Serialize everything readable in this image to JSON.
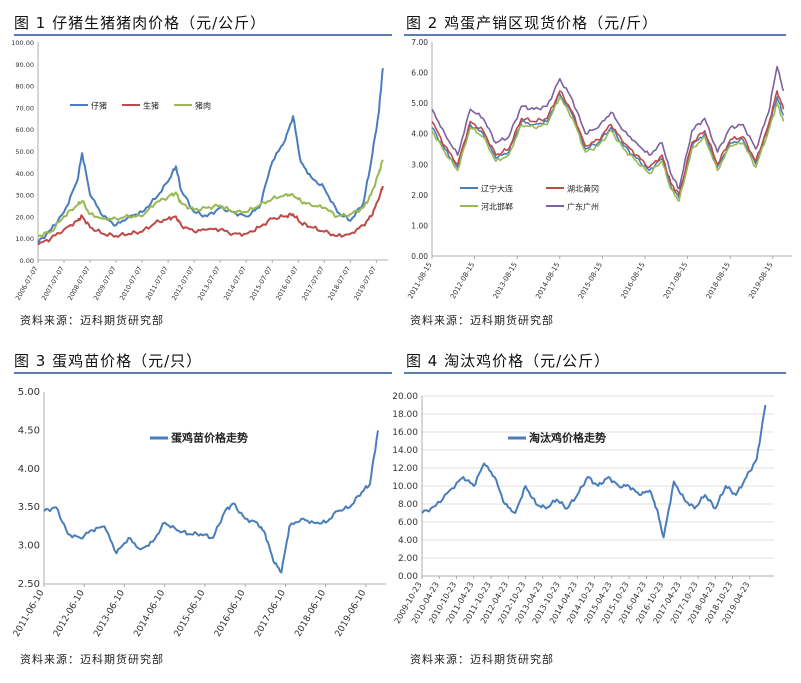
{
  "source_label": "资料来源：迈科期货研究部",
  "charts": [
    {
      "title": "图 1  仔猪生猪猪肉价格（元/公斤）",
      "chart_data": {
        "type": "line",
        "ylim": [
          0,
          100
        ],
        "yticks": [
          "0.00",
          "10.00",
          "20.00",
          "30.00",
          "40.00",
          "50.00",
          "60.00",
          "70.00",
          "80.00",
          "90.00",
          "100.00"
        ],
        "xticks": [
          "2006-07-07",
          "2007-07-07",
          "2008-07-07",
          "2009-07-07",
          "2010-07-07",
          "2011-07-07",
          "2012-07-07",
          "2013-07-07",
          "2014-07-07",
          "2015-07-07",
          "2016-07-07",
          "2017-07-07",
          "2018-07-07",
          "2019-07-07"
        ],
        "x": [
          2006.5,
          2007.0,
          2007.5,
          2008.0,
          2008.2,
          2008.5,
          2009.0,
          2009.5,
          2010.0,
          2010.5,
          2011.0,
          2011.5,
          2011.8,
          2012.0,
          2012.5,
          2013.0,
          2013.5,
          2014.0,
          2014.5,
          2015.0,
          2015.5,
          2016.0,
          2016.3,
          2016.6,
          2017.0,
          2017.5,
          2018.0,
          2018.5,
          2019.0,
          2019.3,
          2019.6,
          2019.75
        ],
        "series": [
          {
            "name": "仔猪",
            "color": "#4a7ebb",
            "values": [
              8,
              14,
              22,
              36,
              49,
              30,
              20,
              16,
              20,
              22,
              28,
              36,
              43,
              32,
              22,
              20,
              24,
              22,
              20,
              24,
              45,
              55,
              66,
              45,
              38,
              33,
              22,
              18,
              26,
              45,
              68,
              88
            ]
          },
          {
            "name": "生猪",
            "color": "#be4b48",
            "values": [
              7,
              10,
              14,
              18,
              20,
              15,
              12,
              11,
              12,
              13,
              17,
              19,
              20,
              16,
              13,
              14,
              14,
              12,
              12,
              15,
              19,
              20,
              21,
              17,
              15,
              13,
              11,
              12,
              16,
              20,
              28,
              34
            ]
          },
          {
            "name": "猪肉",
            "color": "#98b954",
            "values": [
              11,
              13,
              20,
              25,
              27,
              21,
              19,
              19,
              20,
              20,
              26,
              29,
              31,
              26,
              23,
              24,
              25,
              22,
              22,
              25,
              28,
              30,
              30,
              27,
              25,
              24,
              20,
              21,
              24,
              30,
              40,
              46
            ]
          }
        ]
      }
    },
    {
      "title": "图 2    鸡蛋产销区现货价格（元/斤）",
      "chart_data": {
        "type": "line",
        "ylim": [
          0,
          7
        ],
        "yticks": [
          "0.00",
          "1.00",
          "2.00",
          "3.00",
          "4.00",
          "5.00",
          "6.00",
          "7.00"
        ],
        "xticks": [
          "2011-08-15",
          "2012-08-15",
          "2013-08-15",
          "2014-08-15",
          "2015-08-15",
          "2016-08-15",
          "2017-08-15",
          "2018-08-15",
          "2019-08-15"
        ],
        "x": [
          2011.6,
          2011.9,
          2012.2,
          2012.5,
          2012.8,
          2013.1,
          2013.4,
          2013.7,
          2014.0,
          2014.3,
          2014.6,
          2014.9,
          2015.2,
          2015.5,
          2015.8,
          2016.1,
          2016.4,
          2016.7,
          2017.0,
          2017.2,
          2017.4,
          2017.7,
          2018.0,
          2018.3,
          2018.6,
          2018.9,
          2019.2,
          2019.5,
          2019.7,
          2019.85
        ],
        "series": [
          {
            "name": "辽宁大连",
            "color": "#4a7ebb",
            "values": [
              4.2,
              3.5,
              2.9,
              4.3,
              4.0,
              3.2,
              3.4,
              4.4,
              4.3,
              4.4,
              5.3,
              4.6,
              3.5,
              3.7,
              4.2,
              3.6,
              3.2,
              2.8,
              3.2,
              2.3,
              1.9,
              3.6,
              4.0,
              2.9,
              3.7,
              3.8,
              3.0,
              4.2,
              5.2,
              4.6
            ]
          },
          {
            "name": "湖北黄冈",
            "color": "#be4b48",
            "values": [
              4.4,
              3.6,
              3.0,
              4.4,
              4.1,
              3.3,
              3.5,
              4.5,
              4.4,
              4.5,
              5.4,
              4.7,
              3.6,
              3.8,
              4.3,
              3.7,
              3.3,
              2.9,
              3.3,
              2.4,
              2.0,
              3.7,
              4.1,
              3.0,
              3.8,
              3.9,
              3.1,
              4.3,
              5.4,
              4.8
            ]
          },
          {
            "name": "河北邯郸",
            "color": "#98b954",
            "values": [
              4.1,
              3.4,
              2.8,
              4.2,
              3.9,
              3.1,
              3.3,
              4.3,
              4.2,
              4.3,
              5.2,
              4.5,
              3.4,
              3.6,
              4.1,
              3.5,
              3.1,
              2.7,
              3.1,
              2.2,
              1.8,
              3.5,
              3.9,
              2.8,
              3.6,
              3.7,
              2.9,
              4.1,
              5.0,
              4.4
            ]
          },
          {
            "name": "广东广州",
            "color": "#7d60a0",
            "values": [
              4.8,
              4.0,
              3.3,
              4.8,
              4.5,
              3.7,
              3.9,
              4.9,
              4.8,
              4.9,
              5.8,
              5.1,
              4.0,
              4.2,
              4.7,
              4.1,
              3.7,
              3.3,
              3.7,
              2.7,
              2.2,
              4.1,
              4.5,
              3.4,
              4.2,
              4.3,
              3.5,
              4.7,
              6.2,
              5.4
            ]
          }
        ]
      }
    },
    {
      "title": "图 3    蛋鸡苗价格（元/只）",
      "chart_data": {
        "type": "line",
        "ylim": [
          2.5,
          5.0
        ],
        "yticks": [
          "2.50",
          "3.00",
          "3.50",
          "4.00",
          "4.50",
          "5.00"
        ],
        "xticks": [
          "2011-06-10",
          "2012-06-10",
          "2013-06-10",
          "2014-06-10",
          "2015-06-10",
          "2016-06-10",
          "2017-06-10",
          "2018-06-10",
          "2019-06-10"
        ],
        "x": [
          2011.4,
          2011.7,
          2012.0,
          2012.3,
          2012.6,
          2012.9,
          2013.2,
          2013.5,
          2013.8,
          2014.1,
          2014.4,
          2014.7,
          2015.0,
          2015.3,
          2015.6,
          2015.9,
          2016.1,
          2016.4,
          2016.7,
          2016.9,
          2017.1,
          2017.3,
          2017.5,
          2017.8,
          2018.1,
          2018.4,
          2018.7,
          2019.0,
          2019.3,
          2019.5,
          2019.7
        ],
        "series": [
          {
            "name": "蛋鸡苗价格走势",
            "color": "#4a7ebb",
            "values": [
              3.45,
              3.5,
              3.15,
              3.1,
              3.2,
              3.25,
              2.9,
              3.1,
              2.95,
              3.05,
              3.3,
              3.2,
              3.15,
              3.15,
              3.1,
              3.45,
              3.55,
              3.35,
              3.3,
              3.15,
              2.8,
              2.65,
              3.25,
              3.35,
              3.3,
              3.3,
              3.45,
              3.5,
              3.7,
              3.8,
              4.5
            ]
          }
        ]
      }
    },
    {
      "title": "图 4    淘汰鸡价格（元/公斤）",
      "chart_data": {
        "type": "line",
        "ylim": [
          0,
          20
        ],
        "yticks": [
          "0.00",
          "2.00",
          "4.00",
          "6.00",
          "8.00",
          "10.00",
          "12.00",
          "14.00",
          "16.00",
          "18.00",
          "20.00"
        ],
        "xticks": [
          "2009-10-23",
          "2010-04-23",
          "2010-10-23",
          "2011-04-23",
          "2011-10-23",
          "2012-04-23",
          "2012-10-23",
          "2013-04-23",
          "2013-10-23",
          "2014-04-23",
          "2014-10-23",
          "2015-04-23",
          "2015-10-23",
          "2016-04-23",
          "2016-10-23",
          "2017-04-23",
          "2017-10-23",
          "2018-04-23",
          "2018-10-23",
          "2019-04-23"
        ],
        "x": [
          2009.8,
          2010.2,
          2010.6,
          2011.0,
          2011.3,
          2011.6,
          2011.9,
          2012.2,
          2012.5,
          2012.8,
          2013.1,
          2013.4,
          2013.7,
          2014.0,
          2014.3,
          2014.6,
          2014.9,
          2015.2,
          2015.5,
          2015.8,
          2016.1,
          2016.4,
          2016.6,
          2016.8,
          2017.1,
          2017.4,
          2017.7,
          2018.0,
          2018.3,
          2018.6,
          2018.9,
          2019.2,
          2019.5,
          2019.75
        ],
        "series": [
          {
            "name": "淘汰鸡价格走势",
            "color": "#4a7ebb",
            "values": [
              7,
              7.8,
              9.5,
              11,
              10,
              12.5,
              11,
              8,
              7,
              10,
              8,
              7.5,
              8.5,
              7.5,
              9,
              11,
              10,
              11,
              10,
              10,
              9,
              9.5,
              7.5,
              4.3,
              10.5,
              8.5,
              7.5,
              9,
              7.5,
              10,
              9,
              11,
              13,
              19
            ]
          }
        ]
      }
    }
  ]
}
